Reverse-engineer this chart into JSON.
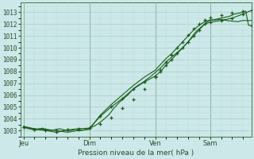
{
  "background_color": "#cce8e8",
  "grid_color_major": "#aacccc",
  "grid_color_minor": "#bbdddd",
  "line_color": "#1a5c1a",
  "marker_color": "#1a5c1a",
  "xlabel": "Pression niveau de la mer( hPa )",
  "ylim": [
    1002.5,
    1013.8
  ],
  "yticks": [
    1003,
    1004,
    1005,
    1006,
    1007,
    1008,
    1009,
    1010,
    1011,
    1012,
    1013
  ],
  "xtick_labels": [
    "Jeu",
    "Dim",
    "Ven",
    "Sam"
  ],
  "xtick_positions": [
    0,
    24,
    48,
    68
  ],
  "total_points": 84,
  "xlim": [
    -1,
    83
  ],
  "vlines": [
    0,
    24,
    48,
    68
  ],
  "s1": [
    1003.3,
    1003.2,
    1003.15,
    1003.1,
    1003.05,
    1003.1,
    1003.15,
    1003.2,
    1003.1,
    1003.05,
    1003.0,
    1003.05,
    1003.1,
    1003.15,
    1003.1,
    1003.05,
    1003.0,
    1003.0,
    1003.05,
    1003.1,
    1003.05,
    1003.0,
    1003.05,
    1003.1,
    1003.2,
    1003.3,
    1003.4,
    1003.55,
    1003.7,
    1003.9,
    1004.1,
    1004.3,
    1004.6,
    1004.9,
    1005.15,
    1005.4,
    1005.6,
    1005.8,
    1006.0,
    1006.25,
    1006.5,
    1006.7,
    1006.85,
    1007.0,
    1007.15,
    1007.35,
    1007.5,
    1007.7,
    1007.9,
    1008.1,
    1008.3,
    1008.55,
    1008.8,
    1009.0,
    1009.2,
    1009.4,
    1009.6,
    1009.8,
    1010.0,
    1010.25,
    1010.5,
    1010.8,
    1011.1,
    1011.4,
    1011.6,
    1011.8,
    1012.0,
    1012.2,
    1012.3,
    1012.35,
    1012.4,
    1012.45,
    1012.5,
    1012.55,
    1012.6,
    1012.65,
    1012.75,
    1012.85,
    1012.9,
    1012.95,
    1013.0,
    1013.1,
    1011.9,
    1011.85
  ],
  "s2_x": [
    0,
    4,
    8,
    12,
    16,
    20,
    24,
    28,
    32,
    36,
    40,
    44,
    48,
    50,
    52,
    54,
    56,
    58,
    60,
    62,
    64,
    66,
    68,
    72,
    76,
    80,
    83
  ],
  "s2_y": [
    1003.3,
    1003.1,
    1003.0,
    1002.85,
    1003.05,
    1003.15,
    1003.2,
    1004.2,
    1005.0,
    1005.7,
    1006.5,
    1007.1,
    1007.6,
    1008.0,
    1008.55,
    1009.0,
    1009.5,
    1010.0,
    1010.5,
    1011.0,
    1011.5,
    1012.0,
    1012.15,
    1012.3,
    1012.5,
    1012.85,
    1013.15
  ],
  "s3_x": [
    0,
    4,
    8,
    12,
    16,
    20,
    24,
    28,
    32,
    36,
    40,
    44,
    48,
    50,
    52,
    54,
    56,
    58,
    60,
    62,
    64,
    66,
    68,
    70,
    72,
    74,
    76,
    78,
    80,
    83
  ],
  "s3_y": [
    1003.35,
    1003.15,
    1003.1,
    1003.0,
    1002.85,
    1003.0,
    1003.1,
    1004.3,
    1005.2,
    1006.0,
    1006.8,
    1007.5,
    1008.1,
    1008.6,
    1009.1,
    1009.5,
    1010.0,
    1010.5,
    1011.0,
    1011.5,
    1011.9,
    1012.2,
    1012.35,
    1012.35,
    1012.4,
    1012.3,
    1012.25,
    1012.2,
    1012.3,
    1012.3
  ],
  "s1_marker_x": [
    0,
    4,
    8,
    12,
    16,
    20,
    24,
    28,
    32,
    36,
    40,
    44,
    48,
    50,
    52,
    54,
    56,
    58,
    60,
    62,
    64,
    66,
    68,
    72,
    76,
    80,
    83
  ],
  "s1_marker_y": [
    1003.3,
    1003.1,
    1003.05,
    1003.0,
    1003.05,
    1003.1,
    1003.2,
    1003.55,
    1004.1,
    1004.9,
    1005.6,
    1006.5,
    1007.5,
    1008.1,
    1008.8,
    1009.4,
    1010.0,
    1010.5,
    1011.1,
    1011.6,
    1012.0,
    1012.35,
    1012.55,
    1012.75,
    1012.95,
    1013.1,
    1011.9
  ]
}
